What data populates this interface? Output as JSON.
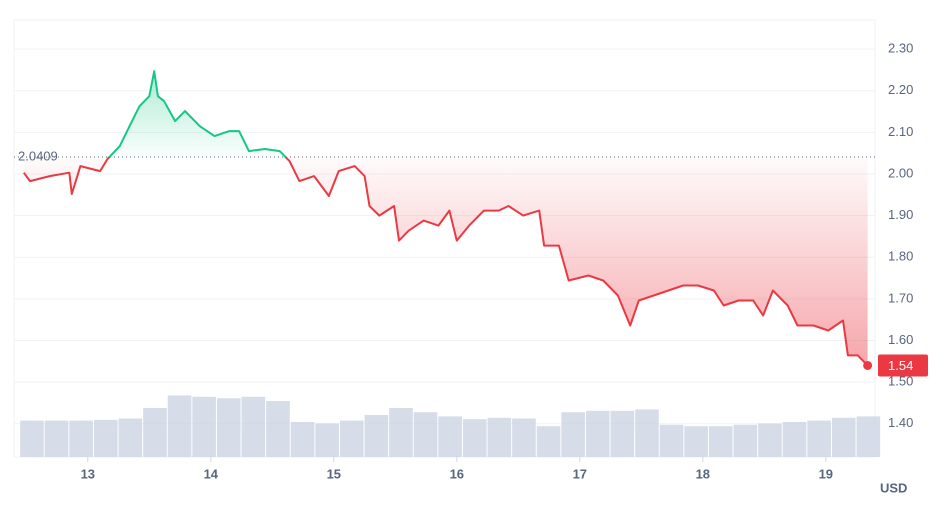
{
  "chart_data": {
    "type": "line",
    "xlim": [
      12.4,
      19.4
    ],
    "xticks": [
      13,
      14,
      15,
      16,
      17,
      18,
      19
    ],
    "ylim": [
      1.32,
      2.37
    ],
    "yticks": [
      {
        "value": 1.4,
        "label": "1.40"
      },
      {
        "value": 1.5,
        "label": "1.50"
      },
      {
        "value": 1.6,
        "label": "1.60"
      },
      {
        "value": 1.7,
        "label": "1.70"
      },
      {
        "value": 1.8,
        "label": "1.80"
      },
      {
        "value": 1.9,
        "label": "1.90"
      },
      {
        "value": 2.0,
        "label": "2.00"
      },
      {
        "value": 2.1,
        "label": "2.10"
      },
      {
        "value": 2.2,
        "label": "2.20"
      },
      {
        "value": 2.3,
        "label": "2.30"
      }
    ],
    "grid": true,
    "unit_label": "USD",
    "baseline": 2.0409,
    "current_price": 1.54,
    "up_color": "#16c784",
    "down_color": "#ea3943",
    "volume_color": "#cfd6e4",
    "price": {
      "x": [
        12.48,
        12.53,
        12.69,
        12.85,
        12.87,
        12.94,
        13.1,
        13.16,
        13.26,
        13.34,
        13.42,
        13.5,
        13.54,
        13.57,
        13.62,
        13.71,
        13.79,
        13.91,
        14.03,
        14.15,
        14.23,
        14.31,
        14.44,
        14.56,
        14.64,
        14.72,
        14.84,
        14.96,
        15.04,
        15.17,
        15.25,
        15.29,
        15.37,
        15.49,
        15.53,
        15.61,
        15.73,
        15.85,
        15.94,
        16.0,
        16.1,
        16.22,
        16.34,
        16.42,
        16.54,
        16.67,
        16.71,
        16.83,
        16.91,
        17.07,
        17.19,
        17.31,
        17.41,
        17.48,
        17.6,
        17.72,
        17.84,
        17.96,
        18.09,
        18.17,
        18.29,
        18.41,
        18.49,
        18.57,
        18.69,
        18.77,
        18.9,
        19.02,
        19.14,
        19.18,
        19.26,
        19.34
      ],
      "values": [
        2.003,
        1.983,
        1.995,
        2.003,
        1.952,
        2.019,
        2.007,
        2.036,
        2.067,
        2.115,
        2.163,
        2.187,
        2.247,
        2.187,
        2.175,
        2.127,
        2.151,
        2.115,
        2.091,
        2.103,
        2.103,
        2.055,
        2.06,
        2.055,
        2.031,
        1.983,
        1.995,
        1.947,
        2.007,
        2.019,
        1.995,
        1.923,
        1.9,
        1.923,
        1.84,
        1.864,
        1.888,
        1.876,
        1.912,
        1.84,
        1.876,
        1.912,
        1.912,
        1.923,
        1.9,
        1.912,
        1.828,
        1.828,
        1.744,
        1.756,
        1.744,
        1.708,
        1.636,
        1.696,
        1.708,
        1.72,
        1.732,
        1.732,
        1.72,
        1.684,
        1.696,
        1.696,
        1.66,
        1.72,
        1.684,
        1.636,
        1.636,
        1.624,
        1.648,
        1.564,
        1.564,
        1.54
      ]
    },
    "volume": {
      "y2lim": [
        0,
        100
      ],
      "x": [
        12.45,
        12.65,
        12.85,
        13.05,
        13.25,
        13.45,
        13.65,
        13.85,
        14.05,
        14.25,
        14.45,
        14.65,
        14.85,
        15.05,
        15.25,
        15.45,
        15.65,
        15.85,
        16.05,
        16.25,
        16.45,
        16.65,
        16.85,
        17.05,
        17.25,
        17.45,
        17.65,
        17.85,
        18.05,
        18.25,
        18.45,
        18.65,
        18.85,
        19.05,
        19.25
      ],
      "values": [
        52,
        52,
        52,
        53,
        55,
        70,
        88,
        86,
        84,
        86,
        80,
        50,
        48,
        52,
        60,
        70,
        64,
        58,
        54,
        56,
        55,
        44,
        64,
        66,
        66,
        68,
        46,
        44,
        44,
        46,
        48,
        50,
        52,
        56,
        58
      ]
    }
  }
}
